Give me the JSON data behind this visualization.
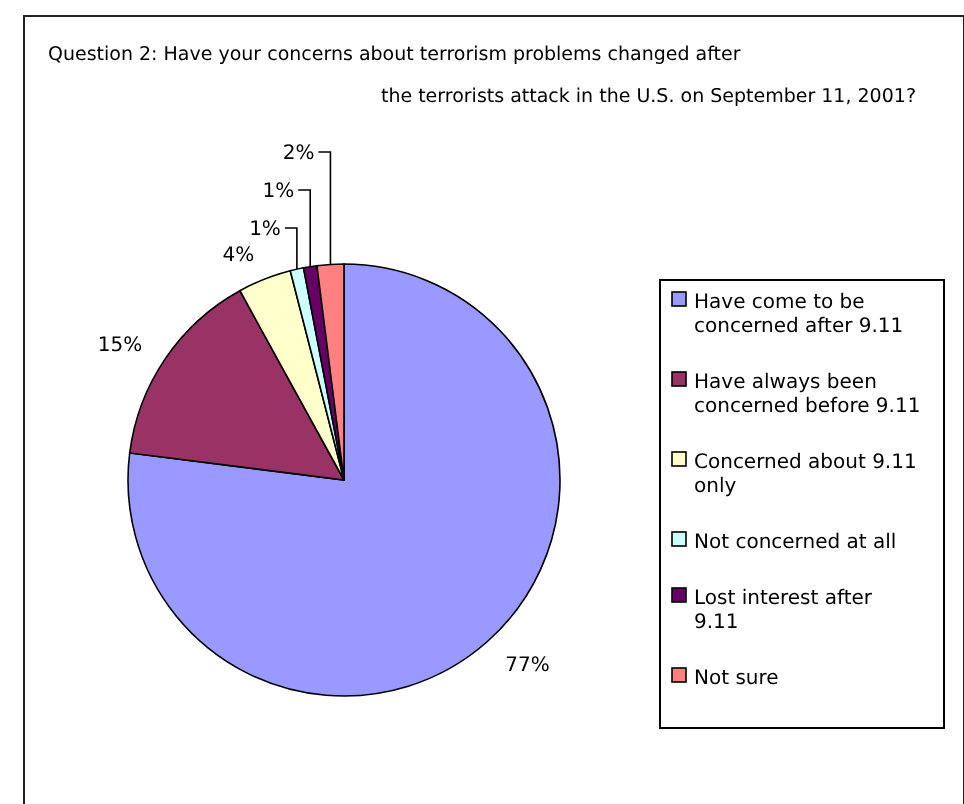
{
  "chart_data": {
    "type": "pie",
    "title": "Question 2: Have your concerns about terrorism problems changed after\nthe terrorists attack in the U.S. on September 11, 2001?",
    "categories": [
      "Have come to be concerned after 9.11",
      "Have always been concerned before 9.11",
      "Concerned about 9.11 only",
      "Not concerned at all",
      "Lost interest after 9.11",
      "Not sure"
    ],
    "values": [
      77,
      15,
      4,
      1,
      1,
      2
    ],
    "colors": [
      "#9999ff",
      "#993366",
      "#ffffcc",
      "#ccffff",
      "#660066",
      "#ff8080"
    ],
    "value_labels": [
      "77%",
      "15%",
      "4%",
      "1%",
      "1%",
      "2%"
    ],
    "legend": "right"
  }
}
